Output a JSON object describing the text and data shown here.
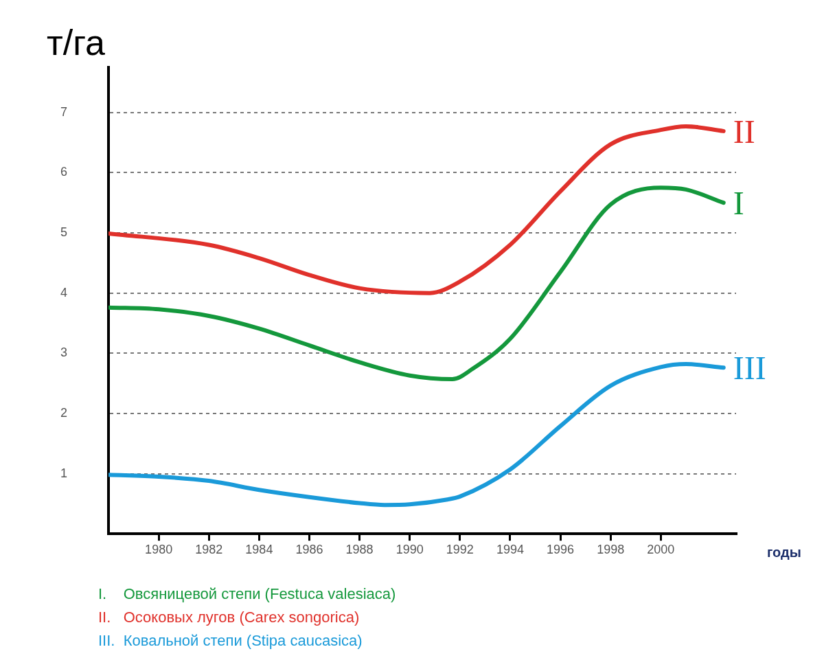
{
  "chart_data": {
    "type": "line",
    "ylabel": "т/га",
    "xlabel": "годы",
    "xlim": [
      1978,
      2003
    ],
    "xticks": [
      1980,
      1982,
      1984,
      1986,
      1988,
      1990,
      1992,
      1994,
      1996,
      1998,
      2000
    ],
    "ylim": [
      0,
      7.75
    ],
    "yticks": [
      1,
      2,
      3,
      4,
      5,
      6,
      7
    ],
    "grid": "y",
    "legend": "bottom left",
    "marker": "none",
    "line_style": "solid",
    "series": [
      {
        "name": "I.    Овсяницевой степи (Festuca valesiaca)",
        "color": "#14983c",
        "x": [
          1978,
          1980,
          1982,
          1984,
          1986,
          1988,
          1990,
          1991.7,
          1992.5,
          1994,
          1996,
          1998,
          2000,
          2001,
          2002.5
        ],
        "values": [
          3.76,
          3.73,
          3.62,
          3.41,
          3.13,
          2.85,
          2.63,
          2.57,
          2.74,
          3.24,
          4.35,
          5.47,
          5.75,
          5.72,
          5.5
        ]
      },
      {
        "name": "II.   Осоковых лугов (Carex songorica)",
        "color": "#e0312b",
        "x": [
          1978,
          1982,
          1984,
          1986,
          1988,
          1990.8,
          1992,
          1994,
          1996,
          1998,
          2000,
          2001,
          2002.5
        ],
        "values": [
          4.99,
          4.8,
          4.58,
          4.3,
          4.08,
          4.0,
          4.19,
          4.8,
          5.69,
          6.47,
          6.71,
          6.77,
          6.69
        ]
      },
      {
        "name": "III.  Ковальной степи (Stipa caucasica)",
        "color": "#1a9ad9",
        "x": [
          1978,
          1980,
          1982,
          1984,
          1986,
          1988,
          1989,
          1990,
          1991.5,
          1992,
          1994,
          1996,
          1998,
          2000,
          2001,
          2002.5
        ],
        "values": [
          0.98,
          0.95,
          0.88,
          0.73,
          0.61,
          0.51,
          0.48,
          0.49,
          0.57,
          0.62,
          1.07,
          1.79,
          2.46,
          2.77,
          2.82,
          2.76
        ]
      }
    ],
    "annotations": [
      "I",
      "II",
      "III"
    ]
  }
}
